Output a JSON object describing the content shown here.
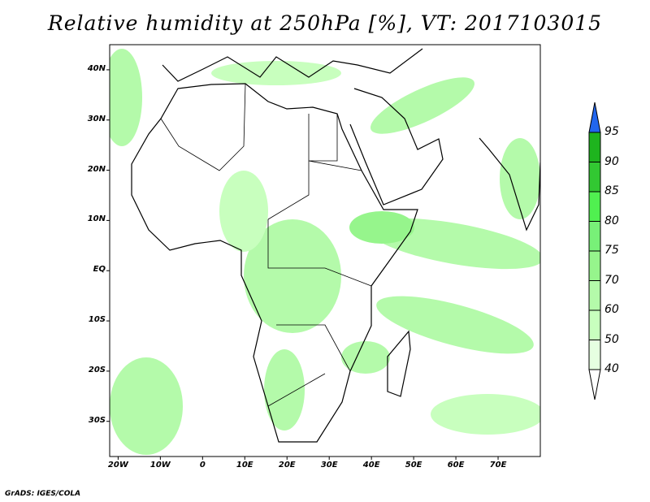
{
  "title": "Relative humidity at 250hPa [%], VT: 2017103015",
  "map": {
    "lon_range": [
      -22,
      80
    ],
    "lat_range": [
      -37,
      45
    ],
    "lat_labels": [
      "40N",
      "30N",
      "20N",
      "10N",
      "EQ",
      "10S",
      "20S",
      "30S"
    ],
    "lat_values": [
      40,
      30,
      20,
      10,
      0,
      -10,
      -20,
      -30
    ],
    "lon_labels": [
      "20W",
      "10W",
      "0",
      "10E",
      "20E",
      "30E",
      "40E",
      "50E",
      "60E",
      "70E"
    ],
    "lon_values": [
      -20,
      -10,
      0,
      10,
      20,
      30,
      40,
      50,
      60,
      70
    ]
  },
  "colorbar": {
    "labels": [
      "95",
      "90",
      "85",
      "80",
      "75",
      "70",
      "60",
      "50",
      "40"
    ],
    "colors": [
      "#1eb41e",
      "#32c832",
      "#50f050",
      "#78f078",
      "#96f58c",
      "#b4faaa",
      "#c8ffbe",
      "#e6ffe1"
    ],
    "over_color": "#2266ee",
    "under_color": "#ffffff"
  },
  "credit": "GrADS: IGES/COLA"
}
